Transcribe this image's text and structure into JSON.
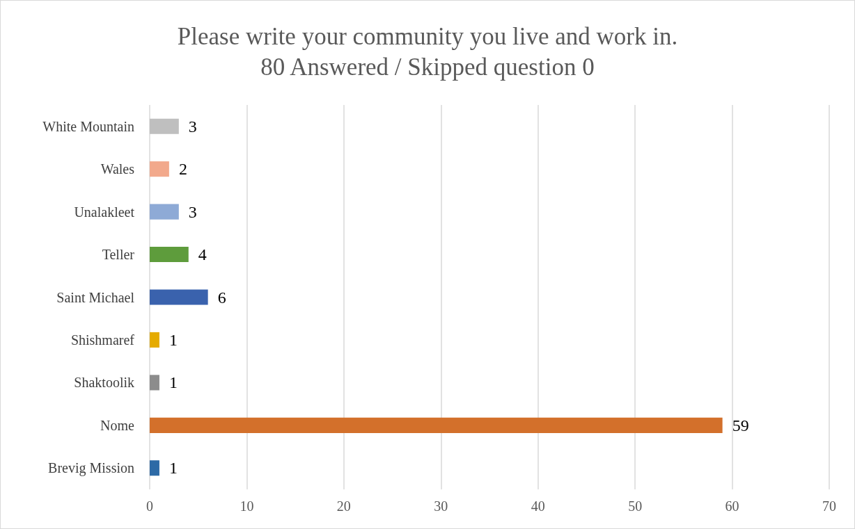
{
  "chart_data": {
    "type": "bar",
    "orientation": "horizontal",
    "title": "Please write your community you live and work in.\n80 Answered / Skipped question 0",
    "categories": [
      "White Mountain",
      "Wales",
      "Unalakleet",
      "Teller",
      "Saint Michael",
      "Shishmaref",
      "Shaktoolik",
      "Nome",
      "Brevig Mission"
    ],
    "values": [
      3,
      2,
      3,
      4,
      6,
      1,
      1,
      59,
      1
    ],
    "colors": [
      "#bfbfbf",
      "#f2a98c",
      "#8eaad6",
      "#5e9c3c",
      "#3a62ad",
      "#e5ab00",
      "#8c8c8c",
      "#d3702b",
      "#2d6aa6"
    ],
    "xlim": [
      0,
      70
    ],
    "xticks": [
      0,
      10,
      20,
      30,
      40,
      50,
      60,
      70
    ],
    "grid": "x",
    "data_labels": true
  }
}
